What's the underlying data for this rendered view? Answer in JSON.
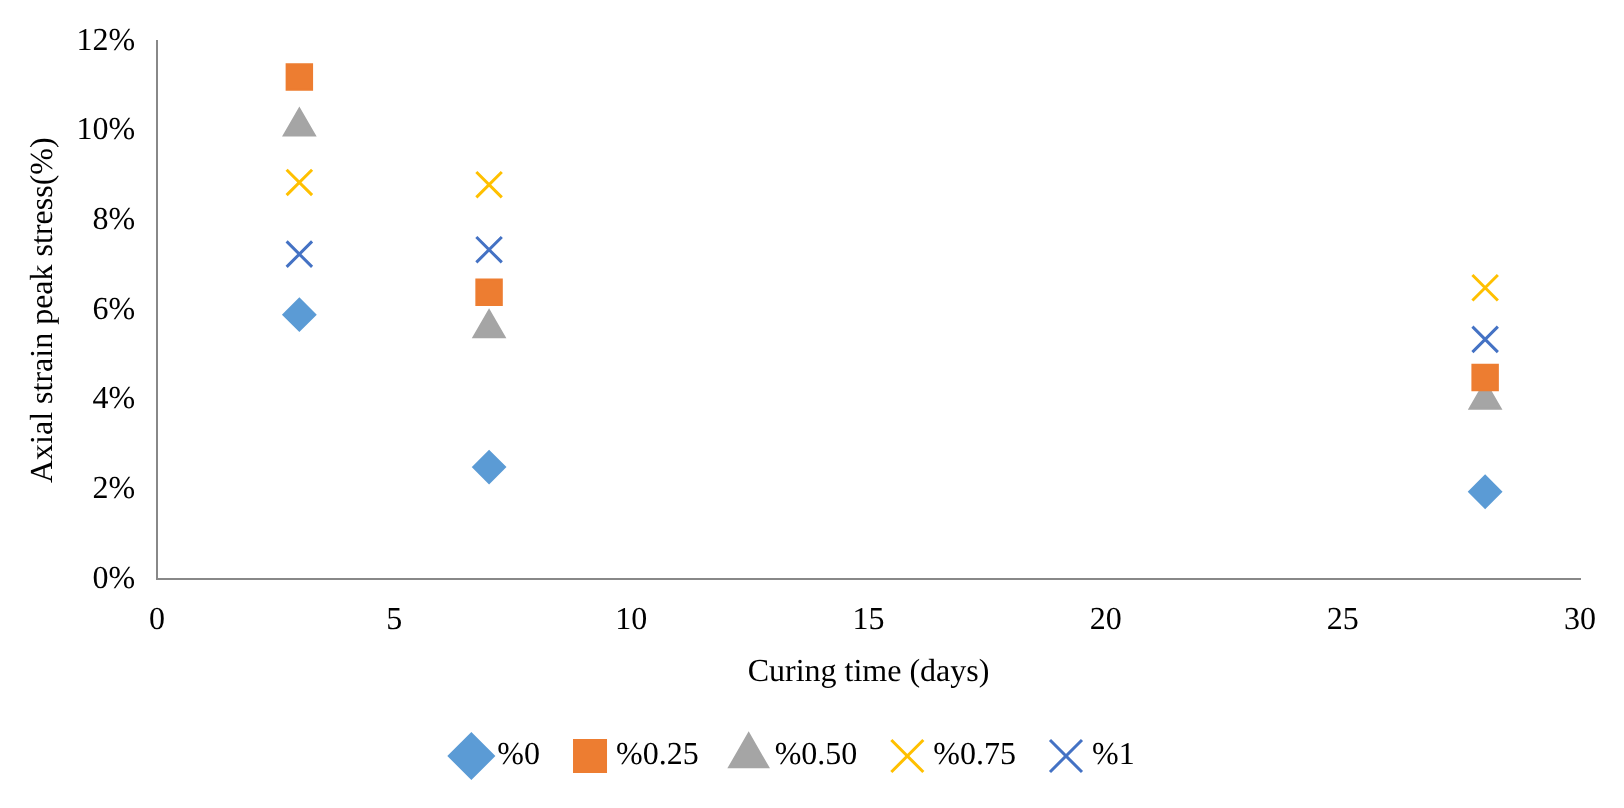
{
  "chart_data": {
    "type": "scatter",
    "xlabel": "Curing time (days)",
    "ylabel": "Axial strain peak stress(%)",
    "xlim": [
      0,
      30
    ],
    "xticks": [
      0,
      5,
      10,
      15,
      20,
      25,
      30
    ],
    "ylim": [
      0,
      12
    ],
    "yticks": [
      {
        "value": 0,
        "label": "0%"
      },
      {
        "value": 2,
        "label": "2%"
      },
      {
        "value": 4,
        "label": "4%"
      },
      {
        "value": 6,
        "label": "6%"
      },
      {
        "value": 8,
        "label": "8%"
      },
      {
        "value": 10,
        "label": "10%"
      },
      {
        "value": 12,
        "label": "12%"
      }
    ],
    "grid": false,
    "legend": "bottom",
    "series": [
      {
        "name": "%0",
        "color": "#5b9bd5",
        "marker": "diamond",
        "x": [
          3,
          7,
          28
        ],
        "values": [
          5.9,
          2.5,
          1.95
        ]
      },
      {
        "name": "%0.25",
        "color": "#ed7d31",
        "marker": "square",
        "x": [
          3,
          7,
          28
        ],
        "values": [
          11.2,
          6.4,
          4.5
        ]
      },
      {
        "name": "%0.50",
        "color": "#a5a5a5",
        "marker": "triangle",
        "x": [
          3,
          7,
          28
        ],
        "values": [
          10.1,
          5.6,
          4.0
        ]
      },
      {
        "name": "%0.75",
        "color": "#ffc000",
        "marker": "cross",
        "x": [
          3,
          7,
          28
        ],
        "values": [
          8.85,
          8.8,
          6.5
        ]
      },
      {
        "name": "%1",
        "color": "#4472c4",
        "marker": "cross",
        "x": [
          3,
          7,
          28
        ],
        "values": [
          7.25,
          7.35,
          5.35
        ]
      }
    ]
  }
}
